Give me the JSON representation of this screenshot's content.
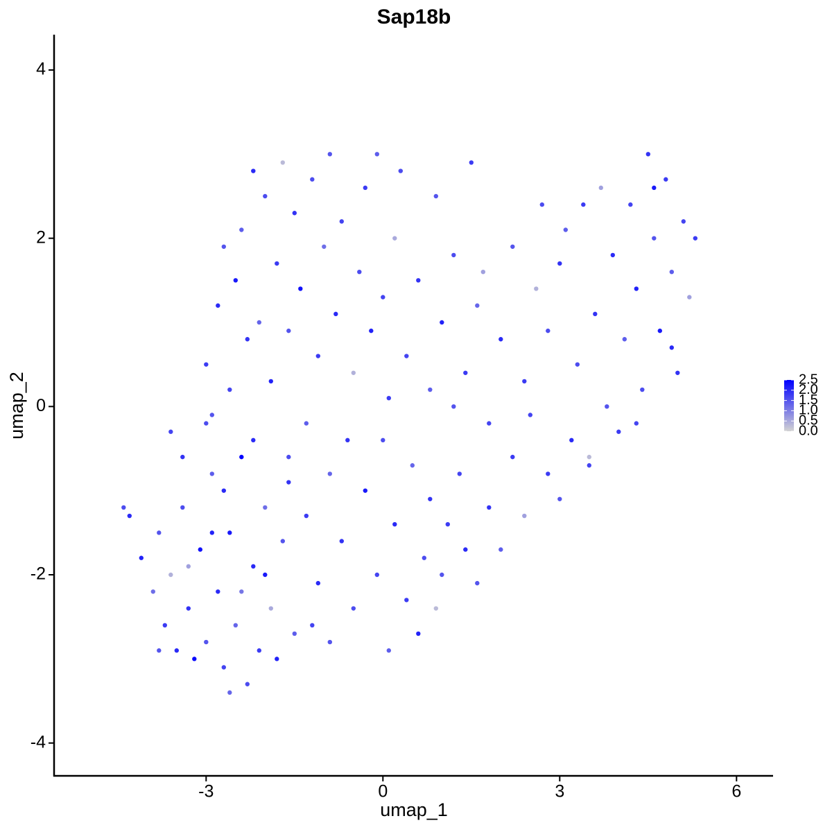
{
  "chart_data": {
    "type": "scatter",
    "title": "Sap18b",
    "x_label": "umap_1",
    "y_label": "umap_2",
    "xlim": [
      -5.58,
      6.62
    ],
    "ylim": [
      -4.39,
      4.42
    ],
    "xticks": [
      -3,
      0,
      3,
      6
    ],
    "yticks": [
      -4,
      -2,
      0,
      2,
      4
    ],
    "low_color": "#d3d3d3",
    "high_color": "#0000ff",
    "color_lim": [
      0,
      2.5
    ],
    "color_ticks": [
      {
        "value": 0,
        "label": "0.0"
      },
      {
        "value": 0.5,
        "label": "0.5"
      },
      {
        "value": 1,
        "label": "1.0"
      },
      {
        "value": 1.5,
        "label": "1.5"
      },
      {
        "value": 2,
        "label": "2.0"
      },
      {
        "value": 2.5,
        "label": "2.5"
      }
    ],
    "x": [
      -4.4,
      -4.3,
      -4.1,
      -3.9,
      -3.8,
      -3.7,
      -3.6,
      -3.5,
      -3.4,
      -3.3,
      -3.2,
      -3.1,
      -3.0,
      -2.9,
      -2.8,
      -2.7,
      -2.6,
      -2.5,
      -2.4,
      -2.3,
      -2.2,
      -2.1,
      -2.0,
      -1.9,
      -1.8,
      -1.7,
      -1.6,
      -1.5,
      -3.6,
      -3.4,
      -3.0,
      -2.7,
      -2.4,
      -2.0,
      -3.8,
      -2.6,
      -3.3,
      -2.9,
      -3.0,
      -2.8,
      -2.7,
      -2.6,
      -2.5,
      -2.4,
      -2.3,
      -2.2,
      -2.1,
      -2.0,
      -1.9,
      -1.8,
      -1.7,
      -1.6,
      -1.5,
      -1.4,
      -1.3,
      -1.2,
      -1.1,
      -1.0,
      -0.9,
      -0.8,
      -0.7,
      -0.6,
      -0.5,
      -0.4,
      -0.3,
      -0.2,
      -0.1,
      0.0,
      -2.9,
      -2.2,
      -1.6,
      -0.9,
      0.1,
      0.2,
      0.3,
      -1.3,
      -1.1,
      -0.9,
      -0.7,
      -0.5,
      -0.3,
      -0.1,
      0.1,
      0.2,
      0.4,
      0.5,
      0.6,
      0.7,
      0.8,
      0.9,
      1.0,
      1.1,
      1.3,
      1.4,
      1.6,
      1.8,
      2.0,
      2.2,
      2.4,
      -1.2,
      0.0,
      0.4,
      0.6,
      0.8,
      1.0,
      1.2,
      1.4,
      1.6,
      1.8,
      2.0,
      2.2,
      2.4,
      2.6,
      2.8,
      3.0,
      1.2,
      1.7,
      2.5,
      0.9,
      1.5,
      2.8,
      3.0,
      3.2,
      3.3,
      3.4,
      3.5,
      3.6,
      3.7,
      3.8,
      3.9,
      4.0,
      4.1,
      4.2,
      4.3,
      4.4,
      4.5,
      4.6,
      4.7,
      4.8,
      4.9,
      5.0,
      5.1,
      5.2,
      5.3,
      4.6,
      3.1,
      2.7,
      4.3,
      3.5,
      4.9
    ],
    "y": [
      -1.2,
      -1.3,
      -1.8,
      -2.2,
      -1.5,
      -2.6,
      -2.0,
      -2.9,
      -1.2,
      -2.4,
      -3.0,
      -1.7,
      -2.8,
      -0.8,
      -2.2,
      -3.1,
      -1.5,
      -2.6,
      -0.6,
      -3.3,
      -1.9,
      -2.9,
      -1.2,
      -2.4,
      -3.0,
      -1.6,
      -0.9,
      -2.7,
      -0.3,
      -0.6,
      -0.2,
      -1.0,
      -2.2,
      -2.0,
      -2.9,
      -3.4,
      -1.9,
      -1.5,
      0.5,
      1.2,
      1.9,
      0.2,
      1.5,
      2.1,
      0.8,
      2.8,
      1.0,
      2.5,
      0.3,
      1.7,
      2.9,
      0.9,
      2.3,
      1.4,
      -0.2,
      2.7,
      0.6,
      1.9,
      3.0,
      1.1,
      2.2,
      -0.4,
      0.4,
      1.6,
      2.6,
      0.9,
      3.0,
      1.3,
      -0.1,
      -0.4,
      -0.6,
      -0.8,
      0.1,
      2.0,
      2.8,
      -1.3,
      -2.1,
      -2.8,
      -1.6,
      -2.4,
      -1.0,
      -2.0,
      -2.9,
      -1.4,
      -2.3,
      -0.7,
      -2.7,
      -1.8,
      -1.1,
      -2.4,
      -2.0,
      -1.4,
      -0.8,
      -1.7,
      -2.1,
      -1.2,
      -1.7,
      -0.6,
      -1.3,
      -2.6,
      -0.4,
      0.6,
      1.5,
      0.2,
      1.0,
      1.8,
      0.4,
      1.2,
      -0.2,
      0.8,
      1.9,
      0.3,
      1.4,
      0.9,
      1.7,
      0.0,
      1.6,
      -0.1,
      2.5,
      2.9,
      -0.8,
      -1.1,
      -0.4,
      0.5,
      2.4,
      -0.7,
      1.1,
      2.6,
      0.0,
      1.8,
      -0.3,
      0.8,
      2.4,
      1.4,
      0.2,
      3.0,
      2.0,
      0.9,
      2.7,
      1.6,
      0.4,
      2.2,
      1.3,
      2.0,
      2.6,
      2.1,
      2.4,
      -0.2,
      -0.6,
      0.7
    ],
    "expression": [
      1.6,
      2.0,
      2.1,
      1.2,
      1.5,
      1.8,
      0.4,
      2.0,
      1.6,
      1.9,
      2.4,
      2.3,
      1.5,
      1.4,
      2.0,
      1.7,
      2.2,
      1.3,
      2.5,
      1.6,
      2.0,
      1.8,
      1.2,
      0.5,
      2.1,
      1.5,
      1.9,
      1.4,
      1.7,
      1.9,
      1.6,
      2.0,
      1.1,
      2.2,
      1.5,
      1.3,
      0.6,
      2.1,
      1.8,
      2.0,
      1.5,
      1.7,
      2.2,
      1.4,
      1.9,
      2.0,
      1.3,
      1.6,
      2.1,
      1.8,
      0.3,
      1.5,
      1.9,
      2.3,
      1.4,
      1.6,
      1.8,
      1.2,
      1.5,
      2.0,
      1.7,
      1.9,
      0.4,
      1.6,
      1.8,
      2.1,
      1.4,
      1.7,
      1.5,
      2.0,
      1.6,
      1.3,
      1.8,
      0.5,
      1.6,
      1.8,
      2.0,
      1.5,
      1.9,
      1.6,
      2.2,
      1.7,
      1.4,
      2.0,
      1.8,
      1.3,
      2.1,
      1.6,
      1.9,
      0.3,
      1.5,
      1.8,
      1.7,
      2.0,
      1.5,
      1.9,
      1.4,
      1.8,
      0.6,
      1.7,
      1.6,
      1.7,
      1.9,
      1.4,
      2.1,
      1.6,
      1.8,
      1.3,
      1.7,
      2.0,
      1.5,
      1.8,
      0.4,
      1.6,
      1.9,
      1.5,
      0.6,
      1.7,
      1.5,
      1.8,
      1.8,
      1.5,
      2.0,
      1.6,
      1.8,
      1.7,
      1.9,
      0.6,
      1.5,
      2.0,
      1.8,
      1.4,
      1.7,
      2.1,
      1.6,
      1.9,
      1.5,
      2.2,
      1.8,
      1.4,
      1.9,
      1.7,
      0.6,
      1.8,
      2.2,
      1.4,
      1.6,
      1.7,
      0.3,
      2.0
    ]
  }
}
